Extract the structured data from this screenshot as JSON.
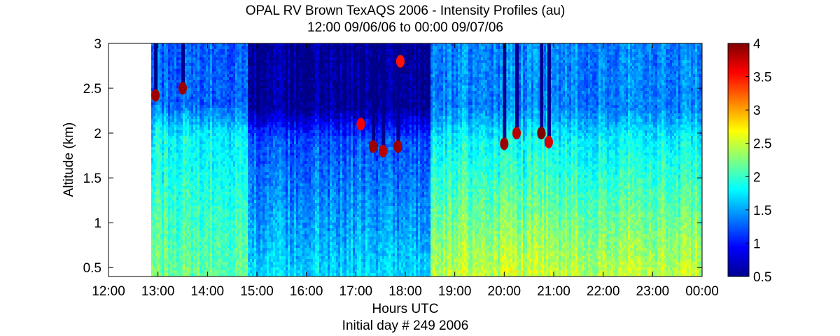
{
  "chart_data": {
    "type": "heatmap",
    "title": "OPAL RV Brown TexAQS 2006 - Intensity Profiles (au)",
    "subtitle": "12:00 09/06/06 to 00:00 09/07/06",
    "xlabel": "Hours UTC",
    "xlabel2": "Initial day # 249  2006",
    "ylabel": "Altitude (km)",
    "x_tick_labels": [
      "12:00",
      "13:00",
      "14:00",
      "15:00",
      "16:00",
      "17:00",
      "18:00",
      "19:00",
      "20:00",
      "21:00",
      "22:00",
      "23:00",
      "00:00"
    ],
    "x_tick_hours": [
      12,
      13,
      14,
      15,
      16,
      17,
      18,
      19,
      20,
      21,
      22,
      23,
      24
    ],
    "xlim_hours": [
      12,
      24
    ],
    "ylim": [
      0.4,
      3
    ],
    "y_ticks": [
      0.5,
      1,
      1.5,
      2,
      2.5,
      3
    ],
    "y_tick_labels": [
      "0.5",
      "1",
      "1.5",
      "2",
      "2.5",
      "3"
    ],
    "colorbar": {
      "range": [
        0.5,
        4
      ],
      "ticks": [
        0.5,
        1,
        1.5,
        2,
        2.5,
        3,
        3.5,
        4
      ],
      "tick_labels": [
        "0.5",
        "1",
        "1.5",
        "2",
        "2.5",
        "3",
        "3.5",
        "4"
      ],
      "colormap": "jet"
    },
    "data_start_hour": 12.87,
    "time_segments": [
      {
        "from": 12.87,
        "to": 14.78,
        "boundary_layer_top_km": 2.0,
        "lower_value": 2.2,
        "upper_value": 1.8,
        "aloft_value": 1.3
      },
      {
        "from": 14.78,
        "to": 18.5,
        "boundary_layer_top_km": 1.95,
        "lower_value": 1.7,
        "upper_value": 1.2,
        "aloft_value": 0.6
      },
      {
        "from": 18.5,
        "to": 24.0,
        "boundary_layer_top_km": 1.95,
        "lower_value": 2.5,
        "upper_value": 1.8,
        "aloft_value": 1.4
      }
    ],
    "cloud_features": [
      {
        "hour": 12.95,
        "altitude_km": 2.42,
        "value": 3.9
      },
      {
        "hour": 13.5,
        "altitude_km": 2.5,
        "value": 3.9
      },
      {
        "hour": 17.1,
        "altitude_km": 2.1,
        "value": 3.6
      },
      {
        "hour": 17.35,
        "altitude_km": 1.85,
        "value": 3.9
      },
      {
        "hour": 17.55,
        "altitude_km": 1.8,
        "value": 3.8
      },
      {
        "hour": 17.85,
        "altitude_km": 1.85,
        "value": 3.9
      },
      {
        "hour": 17.9,
        "altitude_km": 2.8,
        "value": 3.5
      },
      {
        "hour": 20.0,
        "altitude_km": 1.88,
        "value": 3.9
      },
      {
        "hour": 20.25,
        "altitude_km": 2.0,
        "value": 3.8
      },
      {
        "hour": 20.75,
        "altitude_km": 2.0,
        "value": 4.0
      },
      {
        "hour": 20.9,
        "altitude_km": 1.9,
        "value": 3.7
      }
    ]
  }
}
